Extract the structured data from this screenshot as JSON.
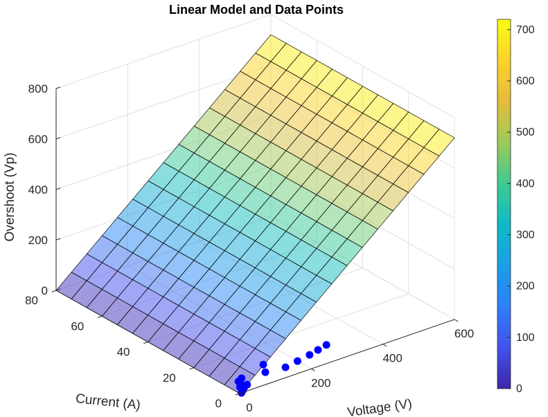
{
  "chart_data": {
    "type": "surface3d",
    "title": "Linear Model and Data Points",
    "xlabel": "Voltage (V)",
    "ylabel": "Current (A)",
    "zlabel": "Overshoot (Vp)",
    "x_ticks": [
      "0",
      "200",
      "400",
      "600"
    ],
    "y_ticks": [
      "0",
      "20",
      "40",
      "60",
      "80"
    ],
    "z_ticks": [
      "0",
      "200",
      "400",
      "600",
      "800"
    ],
    "xlim": [
      0,
      600
    ],
    "ylim": [
      0,
      80
    ],
    "zlim": [
      0,
      800
    ],
    "grid": true,
    "surface": {
      "model": "Overshoot = 1.2 * Voltage",
      "x_range": [
        0,
        600
      ],
      "y_range": [
        0,
        80
      ],
      "mesh_x_lines": 15,
      "mesh_y_lines": 13,
      "facealpha": 0.5,
      "colormap": "parula"
    },
    "points": {
      "color": "#0000ff",
      "data": [
        {
          "x": 5,
          "y": 0,
          "z": 0
        },
        {
          "x": 15,
          "y": 1,
          "z": 0
        },
        {
          "x": 25,
          "y": 2,
          "z": 0
        },
        {
          "x": 30,
          "y": 4,
          "z": 0
        },
        {
          "x": 20,
          "y": 3,
          "z": 0
        },
        {
          "x": 40,
          "y": 3,
          "z": 0
        },
        {
          "x": 35,
          "y": 6,
          "z": 0
        },
        {
          "x": 50,
          "y": 7,
          "z": 0
        },
        {
          "x": 110,
          "y": 6,
          "z": 0
        },
        {
          "x": 130,
          "y": 10,
          "z": 0
        },
        {
          "x": 160,
          "y": 5,
          "z": 0
        },
        {
          "x": 200,
          "y": 6,
          "z": 0
        },
        {
          "x": 240,
          "y": 7,
          "z": 0
        },
        {
          "x": 270,
          "y": 8,
          "z": 0
        },
        {
          "x": 300,
          "y": 9,
          "z": 0
        }
      ]
    },
    "colorbar": {
      "ticks": [
        "0",
        "100",
        "200",
        "300",
        "400",
        "500",
        "600",
        "700"
      ],
      "range": [
        0,
        720
      ],
      "stops": [
        "#3e26a8",
        "#4352ed",
        "#2d7ff9",
        "#1a9fe6",
        "#0dbbc6",
        "#3fcb91",
        "#9dca5a",
        "#e6bc3c",
        "#fbd429",
        "#f9fb15"
      ]
    }
  }
}
